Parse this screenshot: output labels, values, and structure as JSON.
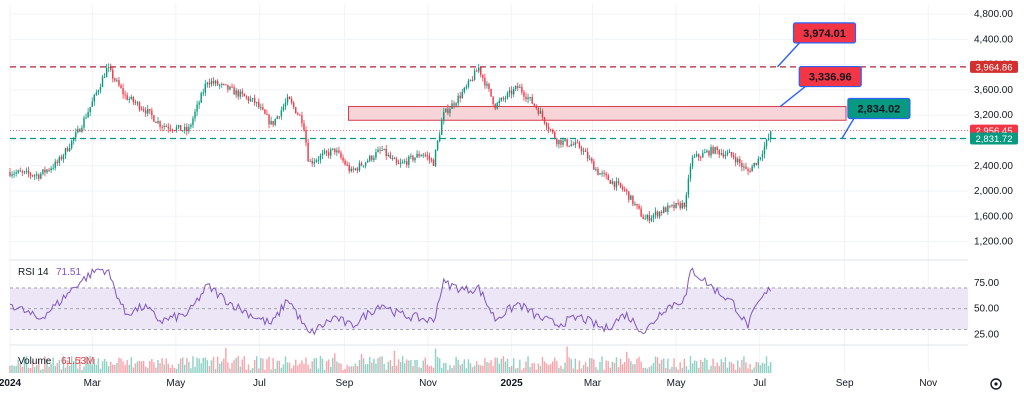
{
  "chart_data": [
    {
      "type": "candlestick",
      "price_axis_ticks": [
        "4,800.00",
        "4,400.00",
        "4,000.00",
        "3,600.00",
        "3,200.00",
        "2,800.00",
        "2,400.00",
        "2,000.00",
        "1,600.00",
        "1,200.00"
      ],
      "price_axis_values": [
        4800,
        4400,
        4000,
        3600,
        3200,
        2800,
        2400,
        2000,
        1600,
        1200
      ],
      "ylim": [
        940,
        4960
      ],
      "x_start": "2024-01-01",
      "x_end": "2025-11-30",
      "x_axis_labels": [
        {
          "text": "2024",
          "date": "2024-01-01",
          "bold": true
        },
        {
          "text": "Mar",
          "date": "2024-03-01",
          "bold": false
        },
        {
          "text": "May",
          "date": "2024-05-01",
          "bold": false
        },
        {
          "text": "Jul",
          "date": "2024-07-01",
          "bold": false
        },
        {
          "text": "Sep",
          "date": "2024-09-01",
          "bold": false
        },
        {
          "text": "Nov",
          "date": "2024-11-01",
          "bold": false
        },
        {
          "text": "2025",
          "date": "2025-01-01",
          "bold": true
        },
        {
          "text": "Mar",
          "date": "2025-03-01",
          "bold": false
        },
        {
          "text": "May",
          "date": "2025-05-01",
          "bold": false
        },
        {
          "text": "Jul",
          "date": "2025-07-01",
          "bold": false
        },
        {
          "text": "Sep",
          "date": "2025-09-01",
          "bold": false
        },
        {
          "text": "Nov",
          "date": "2025-11-01",
          "bold": false
        }
      ],
      "approx_close_path": [
        {
          "date": "2024-01-01",
          "close": 2300
        },
        {
          "date": "2024-01-22",
          "close": 2250
        },
        {
          "date": "2024-02-05",
          "close": 2450
        },
        {
          "date": "2024-02-20",
          "close": 2950
        },
        {
          "date": "2024-03-01",
          "close": 3400
        },
        {
          "date": "2024-03-12",
          "close": 3950
        },
        {
          "date": "2024-03-25",
          "close": 3500
        },
        {
          "date": "2024-04-08",
          "close": 3300
        },
        {
          "date": "2024-04-20",
          "close": 3050
        },
        {
          "date": "2024-05-10",
          "close": 2950
        },
        {
          "date": "2024-05-24",
          "close": 3750
        },
        {
          "date": "2024-06-10",
          "close": 3600
        },
        {
          "date": "2024-06-28",
          "close": 3400
        },
        {
          "date": "2024-07-10",
          "close": 3050
        },
        {
          "date": "2024-07-22",
          "close": 3450
        },
        {
          "date": "2024-08-02",
          "close": 3100
        },
        {
          "date": "2024-08-06",
          "close": 2450
        },
        {
          "date": "2024-08-25",
          "close": 2650
        },
        {
          "date": "2024-09-06",
          "close": 2300
        },
        {
          "date": "2024-09-28",
          "close": 2650
        },
        {
          "date": "2024-10-10",
          "close": 2400
        },
        {
          "date": "2024-10-28",
          "close": 2600
        },
        {
          "date": "2024-11-05",
          "close": 2450
        },
        {
          "date": "2024-11-12",
          "close": 3200
        },
        {
          "date": "2024-11-28",
          "close": 3600
        },
        {
          "date": "2024-12-08",
          "close": 3950
        },
        {
          "date": "2024-12-20",
          "close": 3350
        },
        {
          "date": "2025-01-06",
          "close": 3650
        },
        {
          "date": "2025-01-20",
          "close": 3300
        },
        {
          "date": "2025-02-03",
          "close": 2800
        },
        {
          "date": "2025-02-20",
          "close": 2700
        },
        {
          "date": "2025-03-05",
          "close": 2300
        },
        {
          "date": "2025-03-25",
          "close": 2000
        },
        {
          "date": "2025-04-08",
          "close": 1550
        },
        {
          "date": "2025-04-22",
          "close": 1700
        },
        {
          "date": "2025-05-08",
          "close": 1800
        },
        {
          "date": "2025-05-12",
          "close": 2500
        },
        {
          "date": "2025-05-28",
          "close": 2650
        },
        {
          "date": "2025-06-12",
          "close": 2550
        },
        {
          "date": "2025-06-22",
          "close": 2300
        },
        {
          "date": "2025-06-30",
          "close": 2500
        },
        {
          "date": "2025-07-10",
          "close": 2950
        }
      ],
      "horizontal_lines": [
        {
          "name": "upper-resistance",
          "price": 3964.86,
          "style": "dashed",
          "color": "#b22234"
        },
        {
          "name": "support",
          "price": 2831.72,
          "style": "dashed",
          "color": "#089981"
        }
      ],
      "zone": {
        "from": "2024-09-04",
        "to": "2025-09-02",
        "low": 3120,
        "high": 3336.96,
        "fill": "#f7d4d7",
        "stroke": "#d33b4b"
      },
      "price_tags": [
        {
          "text": "3,964.86",
          "price": 3964.86,
          "color": "#d32f2f"
        },
        {
          "text": "2,956.45",
          "price": 2956.45,
          "color": "#f23645"
        },
        {
          "text": "2,831.72",
          "price": 2831.72,
          "color": "#089981"
        }
      ],
      "callouts": [
        {
          "text": "3,974.01",
          "anchor_date": "2025-07-14",
          "anchor_price": 3964.86,
          "color": "#f23645"
        },
        {
          "text": "3,336.96",
          "anchor_date": "2025-07-16",
          "anchor_price": 3336.96,
          "color": "#f23645"
        },
        {
          "text": "2,834.02",
          "anchor_date": "2025-08-30",
          "anchor_price": 2831.72,
          "color": "#089981"
        }
      ],
      "dotted_last_price": 2956.45,
      "up_color": "#089981",
      "down_color": "#f23645"
    },
    {
      "type": "line",
      "title": "RSI 14",
      "value_label": "71.51",
      "ticks": [
        "75.00",
        "50.00",
        "25.00"
      ],
      "tick_values": [
        75,
        50,
        25
      ],
      "ylim": [
        15,
        95
      ],
      "band": [
        30,
        70
      ],
      "line_color": "#7e57c2",
      "band_fill": "#ece6f6",
      "approx_points": [
        {
          "date": "2024-01-01",
          "rsi": 55
        },
        {
          "date": "2024-01-22",
          "rsi": 40
        },
        {
          "date": "2024-02-05",
          "rsi": 55
        },
        {
          "date": "2024-02-20",
          "rsi": 75
        },
        {
          "date": "2024-03-05",
          "rsi": 88
        },
        {
          "date": "2024-03-12",
          "rsi": 87
        },
        {
          "date": "2024-03-25",
          "rsi": 45
        },
        {
          "date": "2024-04-08",
          "rsi": 52
        },
        {
          "date": "2024-04-20",
          "rsi": 38
        },
        {
          "date": "2024-05-10",
          "rsi": 45
        },
        {
          "date": "2024-05-24",
          "rsi": 72
        },
        {
          "date": "2024-06-10",
          "rsi": 55
        },
        {
          "date": "2024-06-28",
          "rsi": 42
        },
        {
          "date": "2024-07-10",
          "rsi": 35
        },
        {
          "date": "2024-07-22",
          "rsi": 60
        },
        {
          "date": "2024-08-06",
          "rsi": 25
        },
        {
          "date": "2024-08-25",
          "rsi": 42
        },
        {
          "date": "2024-09-06",
          "rsi": 33
        },
        {
          "date": "2024-09-28",
          "rsi": 55
        },
        {
          "date": "2024-10-10",
          "rsi": 45
        },
        {
          "date": "2024-11-05",
          "rsi": 38
        },
        {
          "date": "2024-11-12",
          "rsi": 75
        },
        {
          "date": "2024-11-28",
          "rsi": 68
        },
        {
          "date": "2024-12-08",
          "rsi": 70
        },
        {
          "date": "2024-12-20",
          "rsi": 40
        },
        {
          "date": "2025-01-06",
          "rsi": 55
        },
        {
          "date": "2025-01-20",
          "rsi": 42
        },
        {
          "date": "2025-02-03",
          "rsi": 35
        },
        {
          "date": "2025-02-20",
          "rsi": 42
        },
        {
          "date": "2025-03-10",
          "rsi": 30
        },
        {
          "date": "2025-03-25",
          "rsi": 45
        },
        {
          "date": "2025-04-08",
          "rsi": 27
        },
        {
          "date": "2025-04-22",
          "rsi": 50
        },
        {
          "date": "2025-05-08",
          "rsi": 60
        },
        {
          "date": "2025-05-12",
          "rsi": 88
        },
        {
          "date": "2025-05-28",
          "rsi": 70
        },
        {
          "date": "2025-06-12",
          "rsi": 55
        },
        {
          "date": "2025-06-22",
          "rsi": 33
        },
        {
          "date": "2025-06-30",
          "rsi": 55
        },
        {
          "date": "2025-07-10",
          "rsi": 71.51
        }
      ]
    },
    {
      "type": "bar",
      "title": "Volume",
      "value_label": "61.53M",
      "note": "volume bars are unlabelled; heights are relative"
    }
  ],
  "toolbar": {
    "settings_icon": "settings-circle-icon"
  }
}
